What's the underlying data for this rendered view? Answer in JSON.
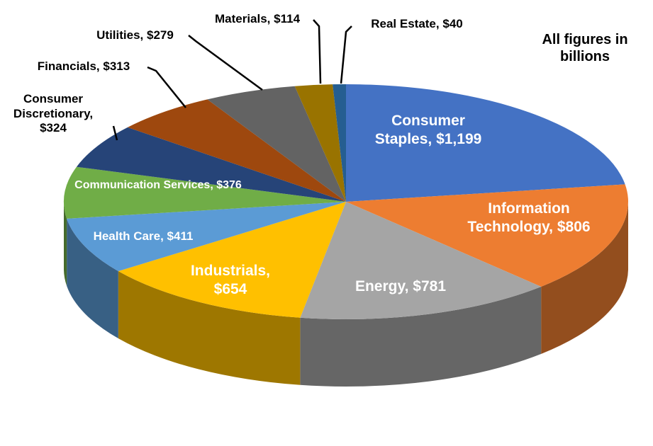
{
  "chart_data": {
    "type": "pie3d",
    "annotation": "All figures in billions",
    "label_separator": ",",
    "categories": [
      "Consumer Staples",
      "Information Technology",
      "Energy",
      "Industrials",
      "Health Care",
      "Communication Services",
      "Consumer Discretionary",
      "Financials",
      "Utilities",
      "Materials",
      "Real Estate"
    ],
    "values": [
      1199,
      806,
      781,
      654,
      411,
      376,
      324,
      313,
      279,
      114,
      40
    ],
    "value_labels": [
      "$1,199",
      "$806",
      "$781",
      "$654",
      "$411",
      "$376",
      "$324",
      "$313",
      "$279",
      "$114",
      "$40"
    ],
    "colors": [
      "#4472c4",
      "#ed7d31",
      "#a5a5a5",
      "#ffc000",
      "#5b9bd5",
      "#70ad47",
      "#264478",
      "#9e480e",
      "#636363",
      "#997300",
      "#255e91"
    ]
  }
}
